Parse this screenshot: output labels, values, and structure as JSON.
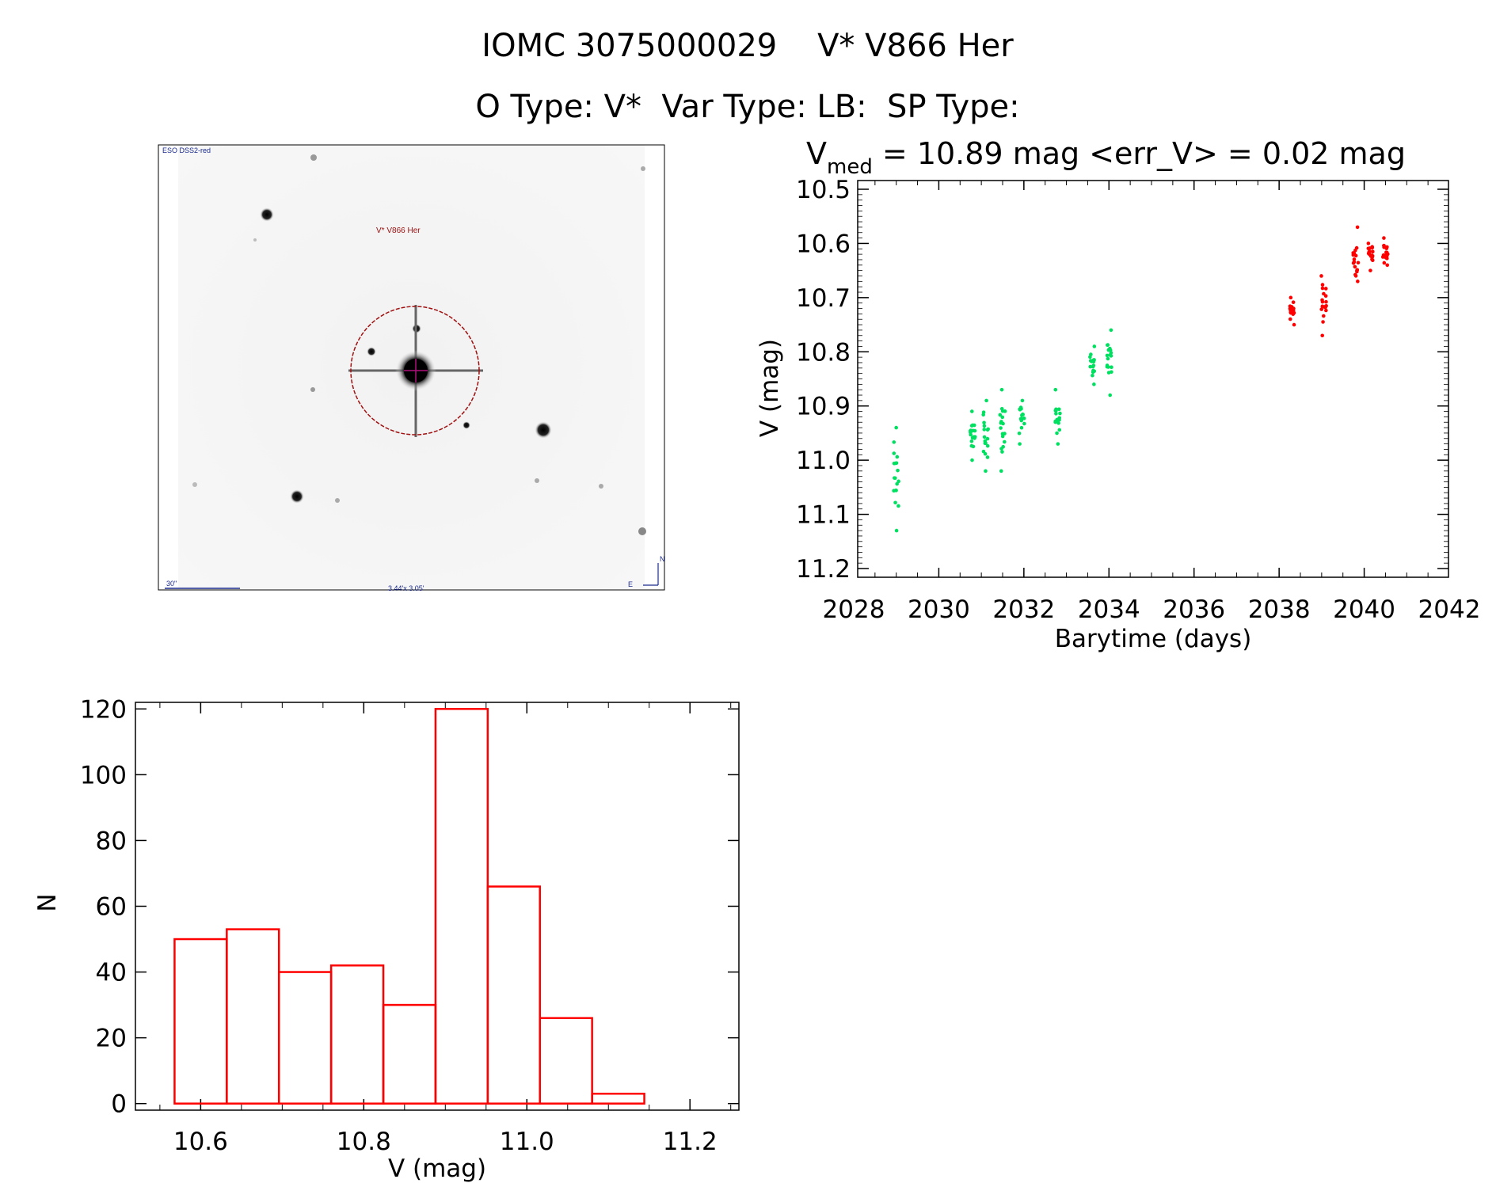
{
  "header": {
    "title": "IOMC 3075000029    V* V866 Her",
    "subtitle": "O Type: V*  Var Type: LB:  SP Type:"
  },
  "finder": {
    "survey_label": "ESO DSS2-red",
    "target_label": "V* V866 Her",
    "scale_label": "30\"",
    "fov_label": "3.44'x 3.05'",
    "north_label": "N",
    "east_label": "E",
    "label_color": "#1a2a8c",
    "target_color": "#a01010"
  },
  "chart_data": [
    {
      "type": "scatter",
      "stats": {
        "v_prefix": "V",
        "v_sub": "med",
        "v_text": " = 10.89 mag <err_V> = 0.02 mag"
      },
      "xlabel": "Barytime (days)",
      "ylabel": "V (mag)",
      "xlim": [
        2028,
        2042
      ],
      "ylim": [
        11.2,
        10.5
      ],
      "y_inverted": true,
      "xticks": [
        "2028",
        "2030",
        "2032",
        "2034",
        "2036",
        "2038",
        "2040",
        "2042"
      ],
      "yticks": [
        "10.5",
        "10.6",
        "10.7",
        "10.8",
        "10.9",
        "11.0",
        "11.1",
        "11.2"
      ],
      "series": [
        {
          "color": "#00e060",
          "clusters": [
            {
              "x": 2029.0,
              "y": [
                11.02,
                10.94,
                11.13,
                10.98,
                11.1
              ]
            },
            {
              "x": 2030.8,
              "y": [
                10.96,
                10.91,
                11.0
              ]
            },
            {
              "x": 2031.1,
              "y": [
                10.95,
                10.89,
                11.02
              ]
            },
            {
              "x": 2031.5,
              "y": [
                10.94,
                10.87,
                11.02
              ]
            },
            {
              "x": 2031.95,
              "y": [
                10.92,
                10.89,
                10.97
              ]
            },
            {
              "x": 2032.8,
              "y": [
                10.92,
                10.87,
                10.97
              ]
            },
            {
              "x": 2033.6,
              "y": [
                10.83,
                10.79,
                10.86
              ]
            },
            {
              "x": 2034.0,
              "y": [
                10.81,
                10.76,
                10.88
              ]
            }
          ]
        },
        {
          "color": "#ff0000",
          "clusters": [
            {
              "x": 2038.3,
              "y": [
                10.72,
                10.7,
                10.75
              ]
            },
            {
              "x": 2039.05,
              "y": [
                10.7,
                10.66,
                10.77
              ]
            },
            {
              "x": 2039.8,
              "y": [
                10.64,
                10.57,
                10.67
              ]
            },
            {
              "x": 2040.15,
              "y": [
                10.62,
                10.6,
                10.65
              ]
            },
            {
              "x": 2040.5,
              "y": [
                10.62,
                10.59,
                10.64
              ]
            }
          ]
        }
      ]
    },
    {
      "type": "bar",
      "xlabel": "V (mag)",
      "ylabel": "N",
      "xlim": [
        10.52,
        11.26
      ],
      "ylim": [
        -2,
        122
      ],
      "xticks": [
        "10.6",
        "10.8",
        "11.0",
        "11.2"
      ],
      "yticks": [
        "0",
        "20",
        "40",
        "60",
        "80",
        "100",
        "120"
      ],
      "bar_color": "#ff0000",
      "bin_edges": [
        10.568,
        10.632,
        10.696,
        10.76,
        10.824,
        10.888,
        10.952,
        11.016,
        11.08,
        11.144
      ],
      "values": [
        50,
        53,
        40,
        42,
        30,
        120,
        66,
        26,
        3
      ]
    }
  ]
}
